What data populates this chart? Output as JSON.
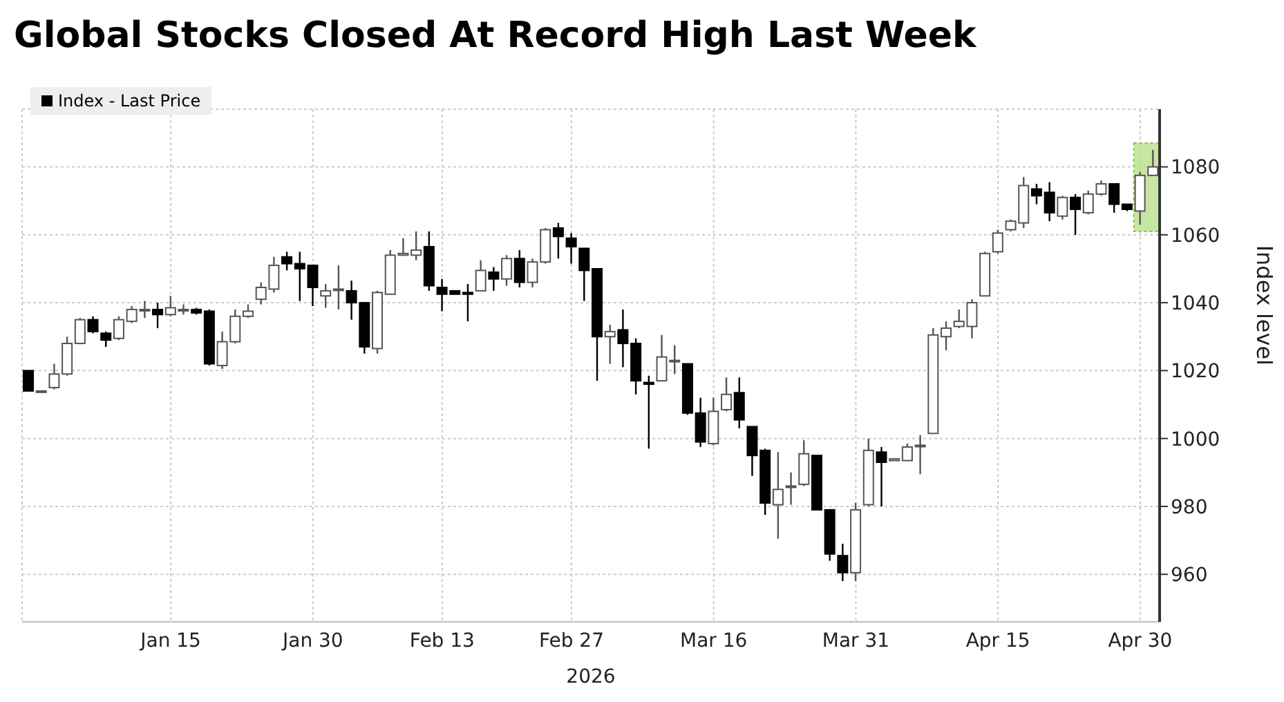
{
  "chart_data": {
    "type": "candlestick",
    "title": "Global Stocks Closed At Record High Last Week",
    "xlabel": "2026",
    "ylabel": "Index level",
    "categories": [
      null,
      null,
      null,
      null,
      null,
      null,
      null,
      null,
      null,
      null,
      null,
      "Jan 15",
      null,
      null,
      null,
      null,
      null,
      null,
      null,
      null,
      null,
      null,
      "Jan 30",
      null,
      null,
      null,
      null,
      null,
      null,
      null,
      null,
      null,
      "Feb 13",
      null,
      null,
      null,
      null,
      null,
      null,
      null,
      null,
      null,
      "Feb 27",
      null,
      null,
      null,
      null,
      null,
      null,
      null,
      null,
      null,
      null,
      "Mar 16",
      null,
      null,
      null,
      null,
      null,
      null,
      null,
      null,
      null,
      null,
      "Mar 31",
      null,
      null,
      null,
      null,
      null,
      null,
      null,
      null,
      null,
      null,
      "Apr 15",
      null,
      null,
      null,
      null,
      null,
      null,
      null,
      null,
      null,
      null,
      "Apr 30",
      null
    ],
    "series": [
      {
        "name": "Index - Last Price",
        "color": "#000000",
        "colors": [
          "#000000",
          "#ffffff",
          "#ffffff",
          "#ffffff",
          "#ffffff",
          "#000000",
          "#000000",
          "#ffffff",
          "#ffffff",
          "#ffffff",
          "#000000",
          "#ffffff",
          "#ffffff",
          "#000000",
          "#000000",
          "#ffffff",
          "#ffffff",
          "#ffffff",
          "#ffffff",
          "#ffffff",
          "#000000",
          "#000000",
          "#000000",
          "#ffffff",
          "#ffffff",
          "#000000",
          "#000000",
          "#ffffff",
          "#ffffff",
          "#ffffff",
          "#ffffff",
          "#000000",
          "#000000",
          "#000000",
          "#000000",
          "#ffffff",
          "#000000",
          "#ffffff",
          "#000000",
          "#ffffff",
          "#ffffff",
          "#000000",
          "#000000",
          "#000000",
          "#000000",
          "#ffffff",
          "#000000",
          "#000000",
          "#000000",
          "#ffffff",
          "#ffffff",
          "#000000",
          "#000000",
          "#ffffff",
          "#ffffff",
          "#000000",
          "#000000",
          "#000000",
          "#ffffff",
          "#ffffff",
          "#ffffff",
          "#000000",
          "#000000",
          "#000000",
          "#ffffff",
          "#ffffff",
          "#000000",
          "#ffffff",
          "#ffffff",
          "#ffffff",
          "#ffffff",
          "#ffffff",
          "#ffffff",
          "#ffffff",
          "#ffffff",
          "#ffffff",
          "#ffffff",
          "#ffffff",
          "#000000",
          "#000000",
          "#ffffff",
          "#000000",
          "#ffffff",
          "#ffffff",
          "#000000",
          "#000000",
          "#ffffff",
          "#ffffff"
        ],
        "ohlc": [
          [
            1020,
            1020,
            1014,
            1014
          ],
          [
            1014,
            1014,
            1014,
            1014
          ],
          [
            1015,
            1022,
            1014.5,
            1019
          ],
          [
            1019,
            1030,
            1018.5,
            1028
          ],
          [
            1028,
            1035.5,
            1028,
            1035
          ],
          [
            1035,
            1036,
            1031,
            1031.5
          ],
          [
            1031,
            1031.5,
            1027,
            1029
          ],
          [
            1029.5,
            1036,
            1029,
            1035
          ],
          [
            1034.5,
            1039,
            1034,
            1038
          ],
          [
            1038,
            1040.5,
            1035.5,
            1038
          ],
          [
            1038,
            1040,
            1032.5,
            1036.5
          ],
          [
            1036.5,
            1042,
            1036,
            1038.5
          ],
          [
            1038,
            1039.5,
            1036.5,
            1038
          ],
          [
            1038,
            1038.5,
            1036.5,
            1037
          ],
          [
            1037.5,
            1038,
            1021.5,
            1022
          ],
          [
            1021.5,
            1031.5,
            1020.5,
            1028.5
          ],
          [
            1028.5,
            1038,
            1028,
            1036
          ],
          [
            1036,
            1039.5,
            1035.5,
            1037.5
          ],
          [
            1041,
            1046,
            1039.5,
            1044.5
          ],
          [
            1044,
            1053.5,
            1043,
            1051
          ],
          [
            1053.5,
            1055,
            1049.5,
            1051.5
          ],
          [
            1051.5,
            1055,
            1040.5,
            1050
          ],
          [
            1051,
            1051,
            1039,
            1044.5
          ],
          [
            1042,
            1045.5,
            1038.5,
            1043.5
          ],
          [
            1044,
            1051,
            1038,
            1044
          ],
          [
            1043.5,
            1046.5,
            1035,
            1040
          ],
          [
            1040,
            1040,
            1025,
            1027
          ],
          [
            1026.5,
            1043.5,
            1025,
            1043
          ],
          [
            1042.5,
            1055.5,
            1042.5,
            1054
          ],
          [
            1054,
            1059,
            1054,
            1054.5
          ],
          [
            1054,
            1061,
            1052.5,
            1055.5
          ],
          [
            1056.5,
            1061,
            1043.5,
            1045
          ],
          [
            1044.5,
            1047,
            1037.5,
            1042.5
          ],
          [
            1043.5,
            1043.5,
            1042.5,
            1042.5
          ],
          [
            1043,
            1045.5,
            1034.5,
            1042.5
          ],
          [
            1043.5,
            1052.5,
            1043.5,
            1049.5
          ],
          [
            1049,
            1050.5,
            1043.5,
            1047
          ],
          [
            1047,
            1054,
            1045,
            1053
          ],
          [
            1053,
            1055.5,
            1044.5,
            1046
          ],
          [
            1046,
            1053,
            1044.5,
            1052
          ],
          [
            1052,
            1062,
            1051.5,
            1061.5
          ],
          [
            1062,
            1063.5,
            1053,
            1059.5
          ],
          [
            1059,
            1060.5,
            1051.5,
            1056.5
          ],
          [
            1056,
            1056,
            1040.5,
            1049.5
          ],
          [
            1050,
            1050,
            1017,
            1030
          ],
          [
            1030,
            1033.5,
            1022,
            1031.5
          ],
          [
            1032,
            1038,
            1021,
            1028
          ],
          [
            1028,
            1029.5,
            1013,
            1017
          ],
          [
            1016.5,
            1018.5,
            997,
            1016
          ],
          [
            1017,
            1030.5,
            1017,
            1024
          ],
          [
            1023,
            1027.5,
            1019,
            1023
          ],
          [
            1022,
            1022,
            1007,
            1007.5
          ],
          [
            1007.5,
            1012,
            997.5,
            999
          ],
          [
            998.5,
            1012,
            998,
            1008
          ],
          [
            1008.5,
            1018,
            1008,
            1013
          ],
          [
            1013.5,
            1018,
            1003,
            1005.5
          ],
          [
            1003.5,
            1003.5,
            989,
            995
          ],
          [
            996.5,
            997,
            977.5,
            981
          ],
          [
            980.5,
            996,
            970.5,
            985
          ],
          [
            986,
            990,
            980.5,
            986
          ],
          [
            986.5,
            999.5,
            986,
            995.5
          ],
          [
            995,
            995,
            979,
            979
          ],
          [
            979,
            979,
            964,
            966
          ],
          [
            965.5,
            969,
            958,
            960.5
          ],
          [
            960.5,
            981,
            958,
            979
          ],
          [
            980.5,
            1000,
            980,
            996.5
          ],
          [
            996,
            997.5,
            980,
            993
          ],
          [
            993.5,
            994,
            993.5,
            994
          ],
          [
            993.5,
            998.5,
            993.5,
            997.5
          ],
          [
            998,
            1001,
            989.5,
            998
          ],
          [
            1001.5,
            1032.5,
            1001.5,
            1030.5
          ],
          [
            1030,
            1034.5,
            1026,
            1032.5
          ],
          [
            1033,
            1038,
            1032.5,
            1034.5
          ],
          [
            1033,
            1041,
            1029.5,
            1040
          ],
          [
            1042,
            1055,
            1042,
            1054.5
          ],
          [
            1055,
            1061.5,
            1054.5,
            1060.5
          ],
          [
            1061.5,
            1064.5,
            1061,
            1064
          ],
          [
            1063.5,
            1077,
            1062,
            1074.5
          ],
          [
            1073.5,
            1075,
            1069,
            1071.5
          ],
          [
            1072.5,
            1075.5,
            1064,
            1066.5
          ],
          [
            1065.5,
            1071.5,
            1064.5,
            1071
          ],
          [
            1071,
            1072,
            1060,
            1067.5
          ],
          [
            1066.5,
            1073,
            1066,
            1072
          ],
          [
            1072,
            1076,
            1071.5,
            1075
          ],
          [
            1075,
            1075,
            1066.5,
            1069
          ],
          [
            1069,
            1069,
            1067,
            1067.5
          ],
          [
            1067,
            1078.5,
            1063,
            1077.5
          ],
          [
            1077.5,
            1085,
            1077.5,
            1080
          ]
        ]
      }
    ],
    "ylim": [
      946,
      1097
    ],
    "yticks": [
      960,
      980,
      1000,
      1020,
      1040,
      1060,
      1080
    ],
    "grid": true,
    "legend": "top left"
  }
}
